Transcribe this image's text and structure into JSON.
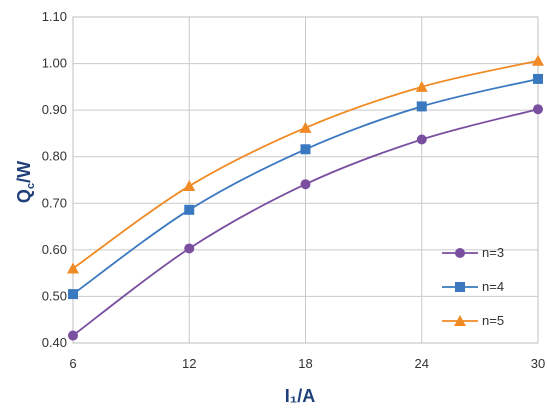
{
  "chart_data": {
    "type": "line",
    "xlabel": "I₁/A",
    "ylabel_main": "Q",
    "ylabel_sub": "c",
    "ylabel_rest": "/W",
    "x": [
      6,
      12,
      18,
      24,
      30
    ],
    "xlim": [
      6,
      30
    ],
    "ylim": [
      0.4,
      1.1
    ],
    "x_ticks": [
      6,
      12,
      18,
      24,
      30
    ],
    "y_ticks": [
      "0.40",
      "0.50",
      "0.60",
      "0.70",
      "0.80",
      "0.90",
      "1.00",
      "1.10"
    ],
    "grid": true,
    "legend_position": "right",
    "series": [
      {
        "name": "n=3",
        "values": [
          0.416,
          0.603,
          0.741,
          0.837,
          0.902
        ],
        "color": "#7a4fa0",
        "marker": "circle"
      },
      {
        "name": "n=4",
        "values": [
          0.505,
          0.686,
          0.816,
          0.908,
          0.967
        ],
        "color": "#3a78c0",
        "marker": "square"
      },
      {
        "name": "n=5",
        "values": [
          0.56,
          0.737,
          0.862,
          0.95,
          1.006
        ],
        "color": "#f08a24",
        "marker": "triangle"
      }
    ]
  }
}
